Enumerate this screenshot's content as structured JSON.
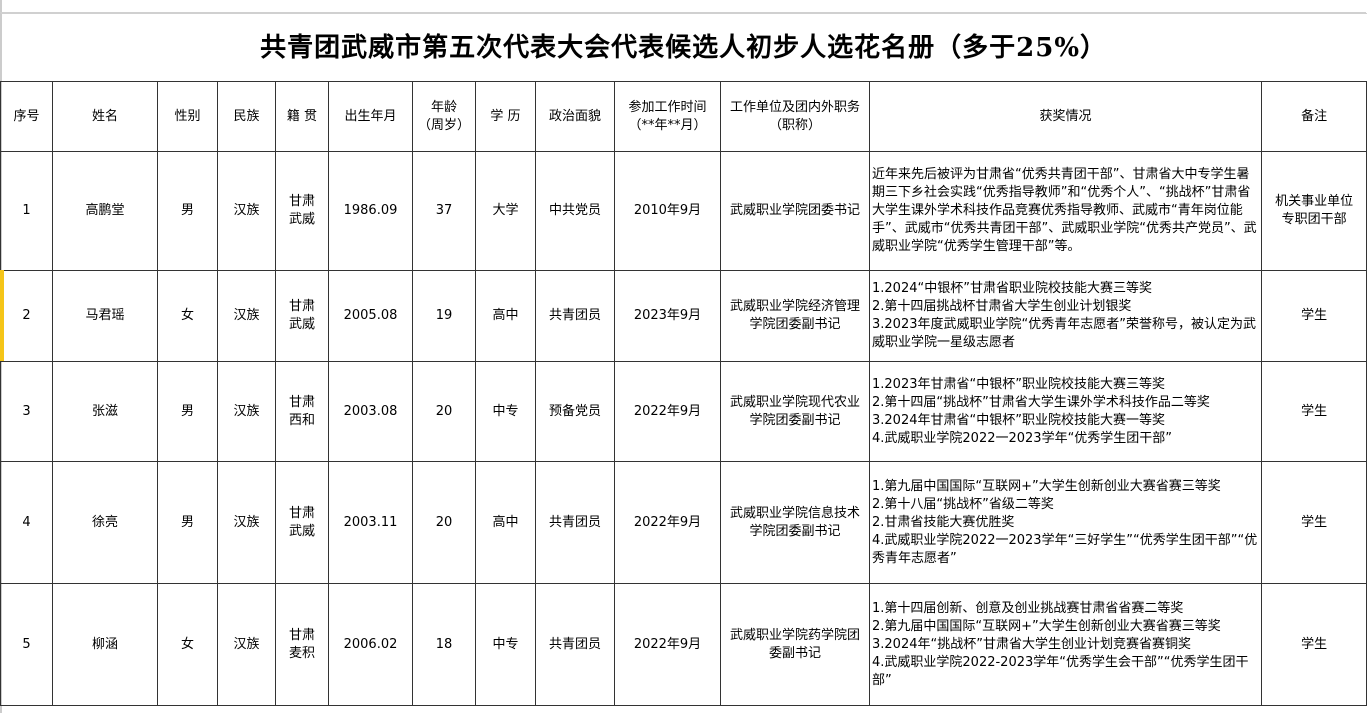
{
  "title": "共青团武威市第五次代表大会代表候选人初步人选花名册（多于25%）",
  "headers": [
    "序号",
    "姓名",
    "性别",
    "民族",
    "籍 贯",
    "出生年月",
    "年龄\n（周岁）",
    "学 历",
    "政治面貌",
    "参加工作时间\n（**年**月）",
    "工作单位及团内外职务（职称）",
    "获奖情况",
    "备注"
  ],
  "rows": [
    {
      "no": "1",
      "name": "高鹏堂",
      "gender": "男",
      "ethnicity": "汉族",
      "origin": "甘肃\n武威",
      "birth": "1986.09",
      "age": "37",
      "education": "大学",
      "political": "中共党员",
      "work_start": "2010年9月",
      "position": "武威职业学院团委书记",
      "awards": [
        "近年来先后被评为甘肃省“优秀共青团干部”、甘肃省大中专学生暑期三下乡社会实践“优秀指导教师”和“优秀个人”、“挑战杯”甘肃省大学生课外学术科技作品竞赛优秀指导教师、武威市“青年岗位能手”、武威市“优秀共青团干部”、武威职业学院“优秀共产党员”、武威职业学院“优秀学生管理干部”等。"
      ],
      "remark": "机关事业单位专职团干部"
    },
    {
      "no": "2",
      "name": "马君瑶",
      "gender": "女",
      "ethnicity": "汉族",
      "origin": "甘肃\n武威",
      "birth": "2005.08",
      "age": "19",
      "education": "高中",
      "political": "共青团员",
      "work_start": "2023年9月",
      "position": "武威职业学院经济管理学院团委副书记",
      "awards": [
        "1.2024“中银杯”甘肃省职业院校技能大赛三等奖",
        "2.第十四届挑战杯甘肃省大学生创业计划银奖",
        "3.2023年度武威职业学院“优秀青年志愿者”荣誉称号，被认定为武威职业学院一星级志愿者"
      ],
      "remark": "学生"
    },
    {
      "no": "3",
      "name": "张滋",
      "gender": "男",
      "ethnicity": "汉族",
      "origin": "甘肃\n西和",
      "birth": "2003.08",
      "age": "20",
      "education": "中专",
      "political": "预备党员",
      "work_start": "2022年9月",
      "position": "武威职业学院现代农业学院团委副书记",
      "awards": [
        "1.2023年甘肃省“中银杯”职业院校技能大赛三等奖",
        "2.第十四届“挑战杯”甘肃省大学生课外学术科技作品二等奖",
        "3.2024年甘肃省“中银杯”职业院校技能大赛一等奖",
        "4.武威职业学院2022一2023学年“优秀学生团干部”"
      ],
      "remark": "学生"
    },
    {
      "no": "4",
      "name": "徐亮",
      "gender": "男",
      "ethnicity": "汉族",
      "origin": "甘肃\n武威",
      "birth": "2003.11",
      "age": "20",
      "education": "高中",
      "political": "共青团员",
      "work_start": "2022年9月",
      "position": "武威职业学院信息技术学院团委副书记",
      "awards": [
        "1.第九届中国国际“互联网+”大学生创新创业大赛省赛三等奖",
        "2.第十八届“挑战杯”省级二等奖",
        "2.甘肃省技能大赛优胜奖",
        "4.武威职业学院2022一2023学年“三好学生”“优秀学生团干部”“优秀青年志愿者”"
      ],
      "remark": "学生"
    },
    {
      "no": "5",
      "name": "柳涵",
      "gender": "女",
      "ethnicity": "汉族",
      "origin": "甘肃\n麦积",
      "birth": "2006.02",
      "age": "18",
      "education": "中专",
      "political": "共青团员",
      "work_start": "2022年9月",
      "position": "武威职业学院药学院团委副书记",
      "awards": [
        "1.第十四届创新、创意及创业挑战赛甘肃省省赛二等奖",
        "2.第九届中国国际“互联网+”大学生创新创业大赛省赛三等奖",
        "3.2024年“挑战杯”甘肃省大学生创业计划竞赛省赛铜奖",
        "4.武威职业学院2022-2023学年“优秀学生会干部”“优秀学生团干部”"
      ],
      "remark": "学生"
    }
  ],
  "colors": {
    "border": "#333333",
    "row_marker": "#f5c518"
  }
}
